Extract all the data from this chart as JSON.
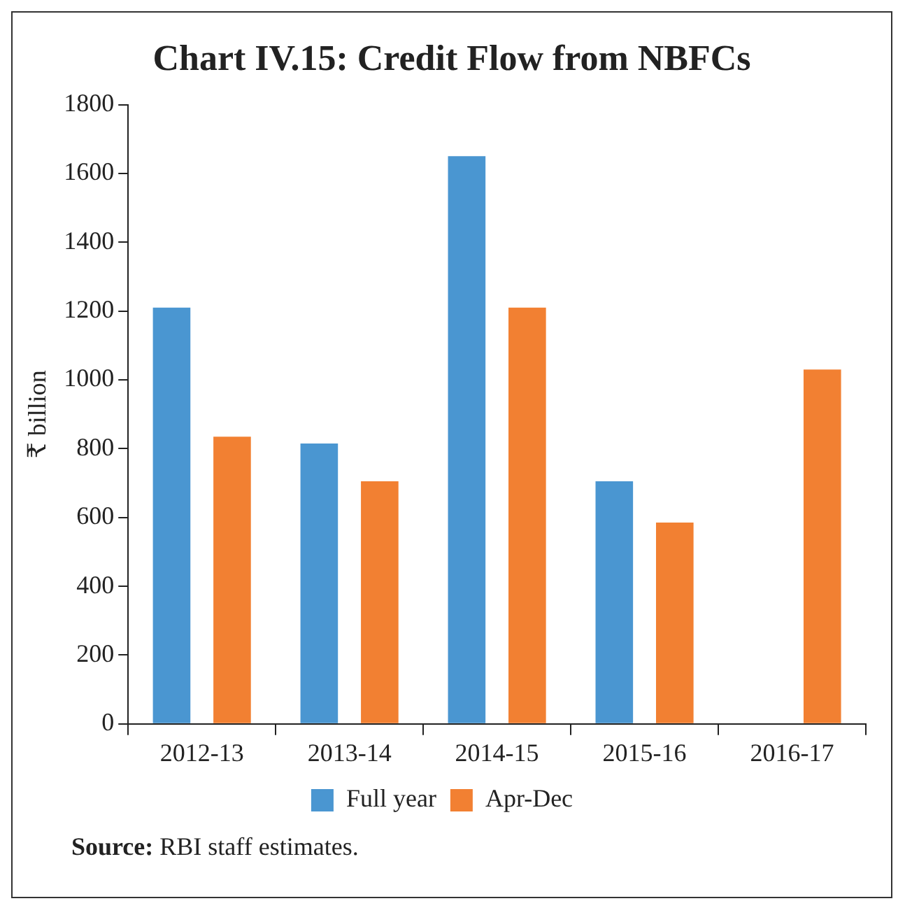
{
  "chart_data": {
    "type": "bar",
    "title": "Chart IV.15: Credit Flow from NBFCs",
    "ylabel": "₹ billion",
    "categories": [
      "2012-13",
      "2013-14",
      "2014-15",
      "2015-16",
      "2016-17"
    ],
    "series": [
      {
        "name": "Full year",
        "color": "#4a96d1",
        "values": [
          1210,
          815,
          1650,
          705,
          null
        ]
      },
      {
        "name": "Apr-Dec",
        "color": "#f28032",
        "values": [
          835,
          705,
          1210,
          585,
          1030
        ]
      }
    ],
    "ylim": [
      0,
      1800
    ],
    "yticks": [
      0,
      200,
      400,
      600,
      800,
      1000,
      1200,
      1400,
      1600,
      1800
    ],
    "grid": false,
    "legend": "bottom",
    "annotations": [
      "Source: RBI staff estimates."
    ]
  }
}
